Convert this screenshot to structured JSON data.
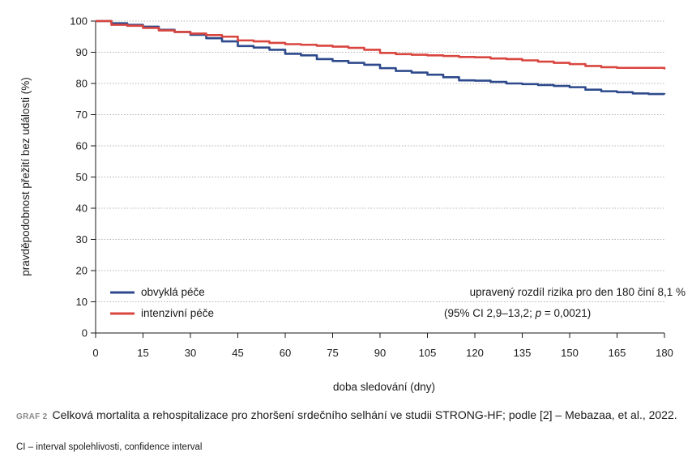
{
  "chart_data": {
    "type": "line",
    "xlabel": "doba sledování (dny)",
    "ylabel": "pravděpodobnost přežití bez události (%)",
    "xlim": [
      0,
      180
    ],
    "ylim": [
      0,
      100
    ],
    "xticks": [
      0,
      15,
      30,
      45,
      60,
      75,
      90,
      105,
      120,
      135,
      150,
      165,
      180
    ],
    "yticks": [
      0,
      10,
      20,
      30,
      40,
      50,
      60,
      70,
      80,
      90,
      100
    ],
    "grid": "horizontal dotted",
    "legend_position": "bottom-left",
    "series": [
      {
        "name": "obvyklá péče",
        "color": "#2e4a8c",
        "x": [
          0,
          5,
          10,
          15,
          20,
          25,
          30,
          35,
          40,
          45,
          50,
          55,
          60,
          65,
          70,
          75,
          80,
          85,
          90,
          95,
          100,
          105,
          110,
          115,
          120,
          125,
          130,
          135,
          140,
          145,
          150,
          155,
          160,
          165,
          170,
          175,
          180
        ],
        "y": [
          100,
          99.3,
          98.8,
          98.2,
          97.2,
          96.5,
          95.6,
          94.5,
          93.5,
          92.0,
          91.5,
          90.8,
          89.5,
          89.0,
          87.8,
          87.2,
          86.6,
          86.0,
          84.9,
          84.0,
          83.5,
          82.8,
          82.0,
          81.0,
          80.9,
          80.5,
          80.0,
          79.8,
          79.5,
          79.2,
          78.8,
          78.0,
          77.5,
          77.2,
          76.8,
          76.6,
          76.5
        ]
      },
      {
        "name": "intenzivní péče",
        "color": "#d9453f",
        "x": [
          0,
          5,
          10,
          15,
          20,
          25,
          30,
          35,
          40,
          45,
          50,
          55,
          60,
          65,
          70,
          75,
          80,
          85,
          90,
          95,
          100,
          105,
          110,
          115,
          120,
          125,
          130,
          135,
          140,
          145,
          150,
          155,
          160,
          165,
          170,
          175,
          180
        ],
        "y": [
          100,
          98.8,
          98.5,
          97.8,
          97.0,
          96.5,
          96.0,
          95.5,
          95.0,
          93.8,
          93.5,
          93.0,
          92.6,
          92.4,
          92.1,
          91.8,
          91.4,
          90.8,
          89.8,
          89.4,
          89.2,
          89.0,
          88.8,
          88.5,
          88.4,
          88.0,
          87.8,
          87.4,
          87.0,
          86.6,
          86.2,
          85.6,
          85.2,
          85.0,
          85.0,
          85.0,
          84.5
        ]
      }
    ],
    "annotation": {
      "line1": "upravený rozdíl rizika pro den 180 činí 8,1 %",
      "line2_pre": "(95% CI 2,9–13,2; ",
      "line2_p": "p",
      "line2_post": " = 0,0021)"
    }
  },
  "caption": {
    "tag": "GRAF 2",
    "text": "Celková mortalita a rehospitalizace pro zhoršení srdečního selhání ve studii STRONG-HF; podle [2] – Mebazaa, et al., 2022.",
    "footnote": "CI – interval spolehlivosti, confidence interval"
  }
}
